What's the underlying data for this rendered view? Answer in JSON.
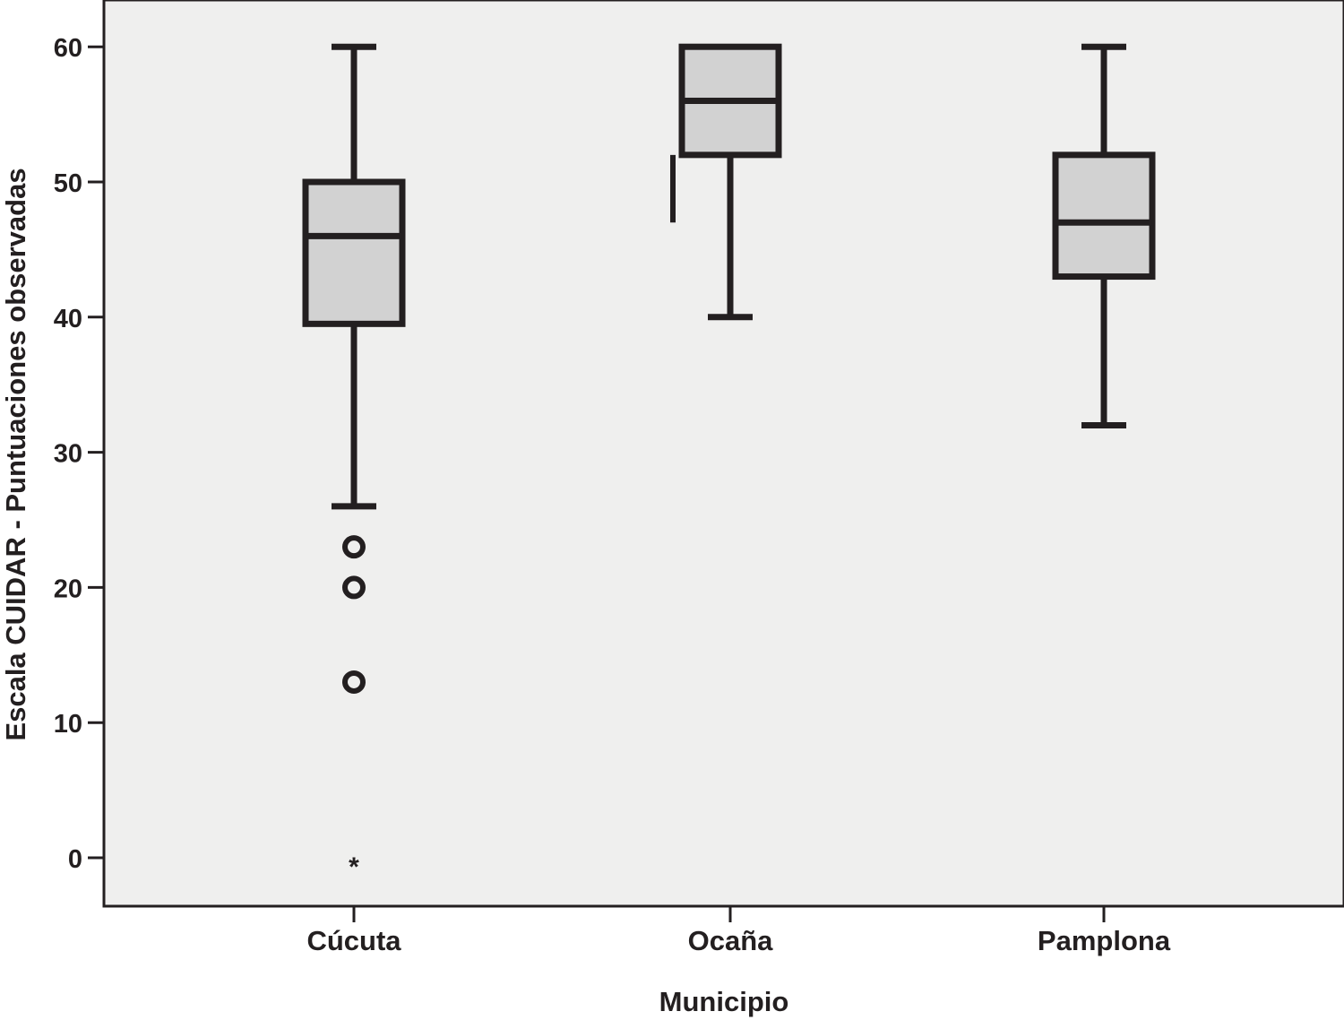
{
  "chart_data": {
    "type": "boxplot",
    "title": "",
    "xlabel": "Municipio",
    "ylabel": "Escala CUIDAR - Puntuaciones observadas",
    "ylim": [
      -3.5,
      63.5
    ],
    "yticks": [
      0,
      10,
      20,
      30,
      40,
      50,
      60
    ],
    "grid": false,
    "categories": [
      "Cúcuta",
      "Ocaña",
      "Pamplona"
    ],
    "series": [
      {
        "category": "Cúcuta",
        "whisker_low": 26,
        "q1": 39.5,
        "median": 46,
        "q3": 50,
        "whisker_high": 60,
        "outliers": [
          23,
          20,
          13
        ],
        "extremes": [
          0
        ]
      },
      {
        "category": "Ocaña",
        "whisker_low": 40,
        "q1": 52,
        "median": 56,
        "q3": 60,
        "whisker_high": 60,
        "outliers": [],
        "extremes": []
      },
      {
        "category": "Pamplona",
        "whisker_low": 32,
        "q1": 43,
        "median": 47,
        "q3": 52,
        "whisker_high": 60,
        "outliers": [],
        "extremes": []
      }
    ],
    "colors": {
      "plot_background": "#efefee",
      "box_fill": "#d2d2d2",
      "stroke": "#231f20"
    },
    "extreme_marker": "*"
  }
}
